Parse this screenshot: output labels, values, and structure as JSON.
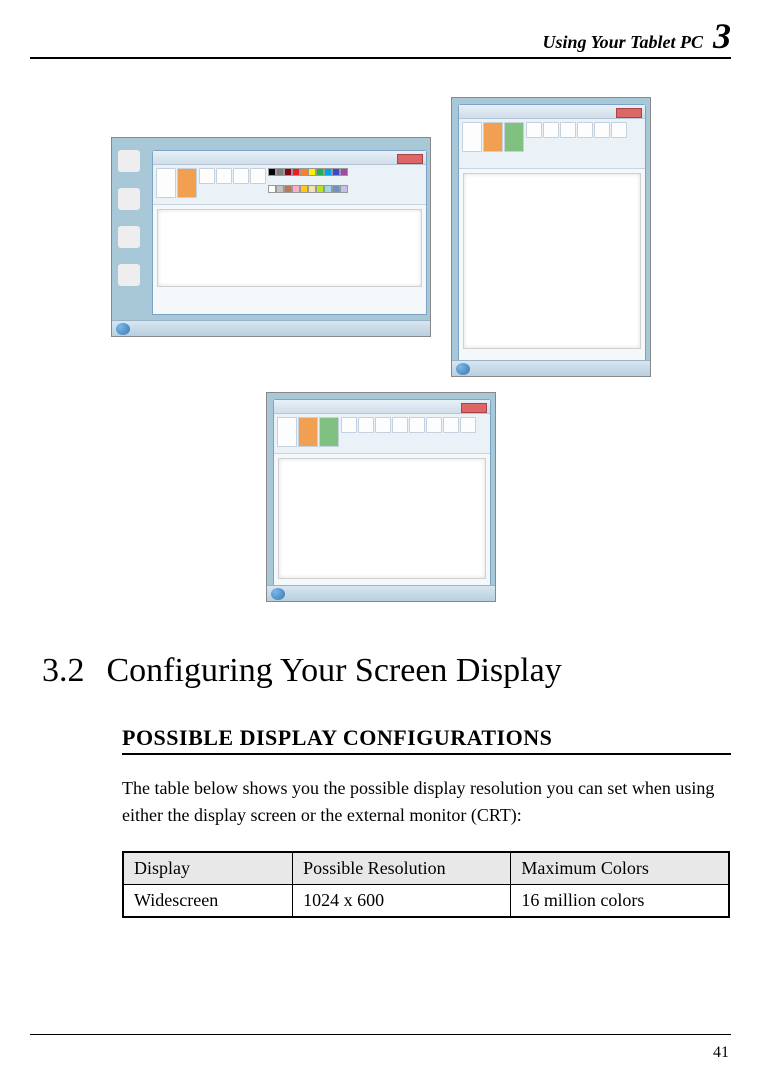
{
  "header": {
    "title": "Using Your Tablet PC",
    "chapter": "3"
  },
  "section": {
    "number": "3.2",
    "title": "Configuring Your Screen Display"
  },
  "subheading": "POSSIBLE DISPLAY CONFIGURATIONS",
  "body": "The table below shows you the possible display resolution you can set when using either the display screen or the external monitor (CRT):",
  "table": {
    "columns": [
      "Display",
      "Possible Resolution",
      "Maximum Colors"
    ],
    "rows": [
      [
        "Widescreen",
        "1024 x 600",
        "16 million colors"
      ]
    ],
    "header_bg": "#e8e8e8",
    "border_color": "#000000"
  },
  "palette_colors": [
    "#000000",
    "#7f7f7f",
    "#880015",
    "#ed1c24",
    "#ff7f27",
    "#fff200",
    "#22b14c",
    "#00a2e8",
    "#3f48cc",
    "#a349a4",
    "#ffffff",
    "#c3c3c3",
    "#b97a57",
    "#ffaec9",
    "#ffc90e",
    "#efe4b0",
    "#b5e61d",
    "#99d9ea",
    "#7092be",
    "#c8bfe7"
  ],
  "screenshot_bg": "#a8c8d8",
  "page_number": "41"
}
